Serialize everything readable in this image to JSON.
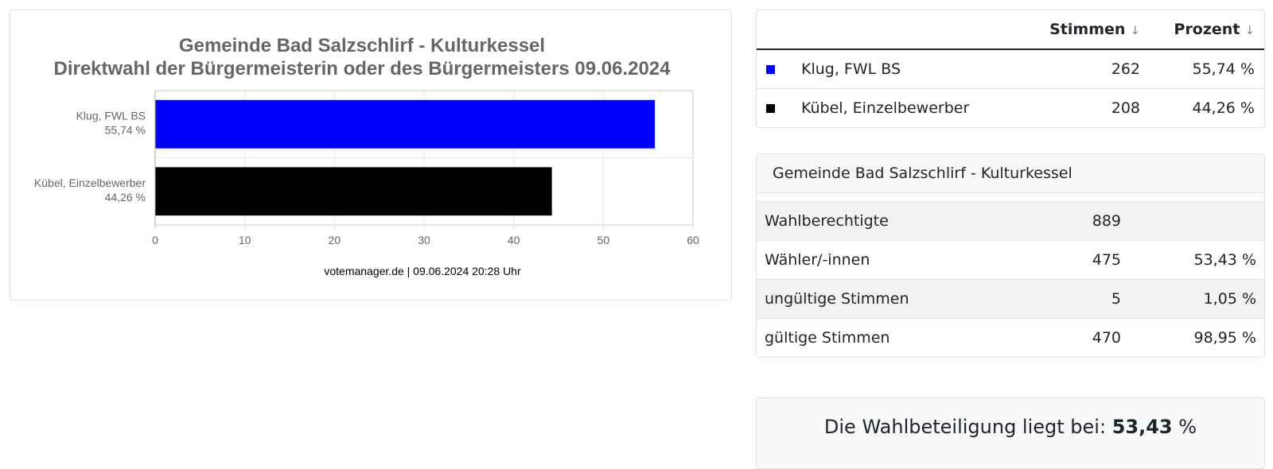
{
  "chart_data": {
    "type": "bar",
    "orientation": "horizontal",
    "title": "Gemeinde Bad Salzschlirf - Kulturkessel",
    "subtitle": "Direktwahl der Bürgermeisterin oder des Bürgermeisters 09.06.2024",
    "categories": [
      {
        "name": "Klug, FWL BS",
        "percent_label": "55,74 %"
      },
      {
        "name": "Kübel, Einzelbewerber",
        "percent_label": "44,26 %"
      }
    ],
    "values": [
      55.74,
      44.26
    ],
    "colors": [
      "#0000ff",
      "#000000"
    ],
    "xlim": [
      0,
      60
    ],
    "ticks": [
      "0",
      "10",
      "20",
      "30",
      "40",
      "50",
      "60"
    ],
    "grid": true,
    "credits": "votemanager.de | 09.06.2024 20:28 Uhr"
  },
  "results": {
    "headers": {
      "votes": "Stimmen",
      "percent": "Prozent"
    },
    "rows": [
      {
        "color": "#0000ff",
        "name": "Klug, FWL BS",
        "votes": "262",
        "percent": "55,74 %"
      },
      {
        "color": "#000000",
        "name": "Kübel, Einzelbewerber",
        "votes": "208",
        "percent": "44,26 %"
      }
    ]
  },
  "stats": {
    "title": "Gemeinde Bad Salzschlirf - Kulturkessel",
    "rows": [
      {
        "label": "Wahlberechtigte",
        "value": "889",
        "percent": ""
      },
      {
        "label": "Wähler/-innen",
        "value": "475",
        "percent": "53,43 %"
      },
      {
        "label": "ungültige Stimmen",
        "value": "5",
        "percent": "1,05 %"
      },
      {
        "label": "gültige Stimmen",
        "value": "470",
        "percent": "98,95 %"
      }
    ]
  },
  "turnout": {
    "prefix": "Die Wahlbeteiligung liegt bei:",
    "value": "53,43",
    "unit": "%"
  }
}
